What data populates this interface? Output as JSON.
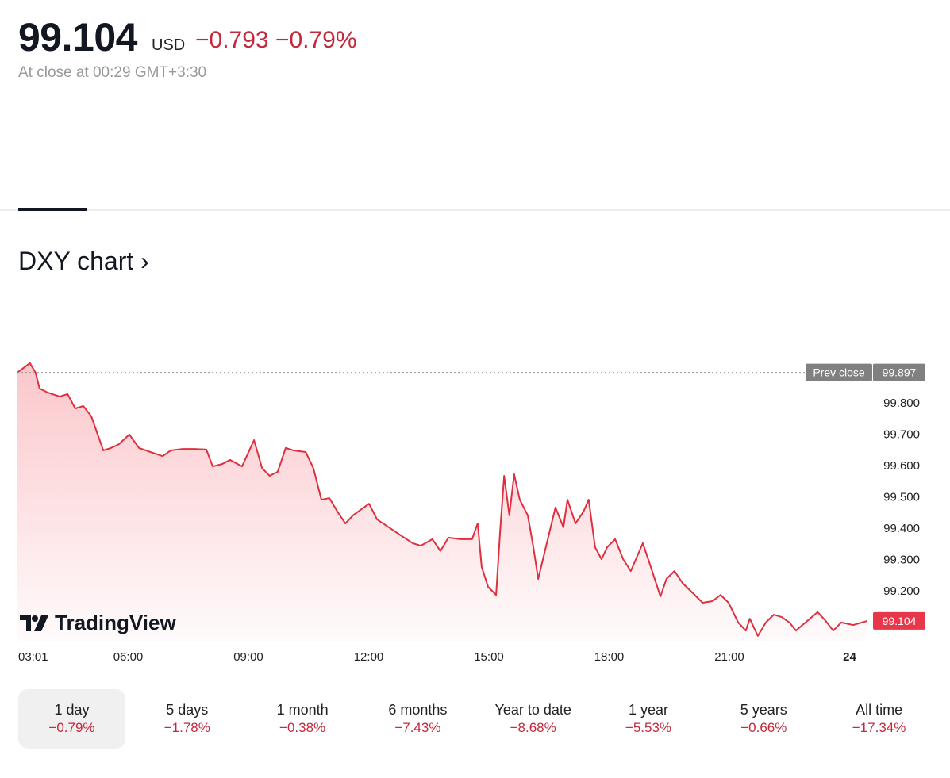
{
  "header": {
    "price": "99.104",
    "currency": "USD",
    "change": "−0.793 −0.79%",
    "close_info": "At close at 00:29 GMT+3:30"
  },
  "section_title": "DXY chart ›",
  "logo": "TradingView",
  "colors": {
    "line": "#e0303f",
    "negative": "#c3293d",
    "badge": "#e8364a",
    "prev_badge": "#808080"
  },
  "chart_data": {
    "type": "area",
    "title": "DXY chart",
    "ylim": [
      99.04,
      99.97
    ],
    "xlim": [
      3.0,
      24.5
    ],
    "y_ticks": [
      "99.800",
      "99.700",
      "99.600",
      "99.500",
      "99.400",
      "99.300",
      "99.200"
    ],
    "y_tick_values": [
      99.8,
      99.7,
      99.6,
      99.5,
      99.4,
      99.3,
      99.2
    ],
    "x_ticks": [
      "03:01",
      "06:00",
      "09:00",
      "12:00",
      "15:00",
      "18:00",
      "21:00",
      "24"
    ],
    "x_tick_values": [
      3.02,
      6,
      9,
      12,
      15,
      18,
      21,
      24
    ],
    "prev_close": {
      "label": "Prev close",
      "value": "99.897",
      "num": 99.897
    },
    "last": {
      "value": "99.104",
      "num": 99.104
    },
    "x": [
      3.02,
      3.55,
      3.69,
      3.79,
      3.99,
      4.29,
      4.49,
      4.68,
      4.88,
      5.08,
      5.22,
      5.38,
      5.57,
      5.77,
      6.03,
      6.27,
      6.56,
      6.86,
      7.06,
      7.36,
      7.65,
      7.95,
      8.11,
      8.35,
      8.54,
      8.84,
      9.14,
      9.34,
      9.53,
      9.73,
      9.93,
      10.13,
      10.43,
      10.62,
      10.82,
      11.02,
      11.22,
      11.42,
      11.61,
      12.01,
      12.21,
      12.5,
      12.8,
      13.1,
      13.3,
      13.59,
      13.79,
      13.99,
      14.29,
      14.58,
      14.72,
      14.82,
      14.98,
      15.18,
      15.28,
      15.38,
      15.51,
      15.63,
      15.77,
      15.97,
      16.11,
      16.23,
      16.42,
      16.66,
      16.86,
      16.96,
      17.16,
      17.36,
      17.49,
      17.65,
      17.81,
      17.95,
      18.15,
      18.35,
      18.54,
      18.84,
      19.04,
      19.28,
      19.43,
      19.63,
      19.83,
      20.03,
      20.33,
      20.58,
      20.78,
      20.98,
      21.22,
      21.41,
      21.51,
      21.71,
      21.91,
      22.11,
      22.31,
      22.5,
      22.66,
      22.9,
      23.2,
      23.39,
      23.59,
      23.79,
      24.09,
      24.44
    ],
    "values": [
      99.897,
      99.927,
      99.896,
      99.846,
      99.833,
      99.82,
      99.828,
      99.782,
      99.79,
      99.757,
      99.706,
      99.648,
      99.656,
      99.668,
      99.699,
      99.656,
      99.643,
      99.63,
      99.648,
      99.653,
      99.653,
      99.651,
      99.597,
      99.605,
      99.618,
      99.597,
      99.681,
      99.592,
      99.567,
      99.58,
      99.656,
      99.648,
      99.643,
      99.592,
      99.491,
      99.496,
      99.453,
      99.415,
      99.441,
      99.478,
      99.428,
      99.403,
      99.377,
      99.352,
      99.344,
      99.365,
      99.327,
      99.37,
      99.365,
      99.365,
      99.415,
      99.276,
      99.213,
      99.187,
      99.39,
      99.567,
      99.441,
      99.572,
      99.491,
      99.441,
      99.339,
      99.238,
      99.339,
      99.466,
      99.403,
      99.491,
      99.415,
      99.453,
      99.491,
      99.339,
      99.301,
      99.339,
      99.365,
      99.301,
      99.263,
      99.352,
      99.276,
      99.182,
      99.238,
      99.263,
      99.225,
      99.2,
      99.162,
      99.167,
      99.187,
      99.162,
      99.099,
      99.073,
      99.111,
      99.056,
      99.099,
      99.124,
      99.116,
      99.099,
      99.073,
      99.099,
      99.132,
      99.106,
      99.073,
      99.099,
      99.091,
      99.104
    ]
  },
  "periods": [
    {
      "label": "1 day",
      "change": "−0.79%",
      "selected": true
    },
    {
      "label": "5 days",
      "change": "−1.78%"
    },
    {
      "label": "1 month",
      "change": "−0.38%"
    },
    {
      "label": "6 months",
      "change": "−7.43%"
    },
    {
      "label": "Year to date",
      "change": "−8.68%"
    },
    {
      "label": "1 year",
      "change": "−5.53%"
    },
    {
      "label": "5 years",
      "change": "−0.66%"
    },
    {
      "label": "All time",
      "change": "−17.34%"
    }
  ]
}
